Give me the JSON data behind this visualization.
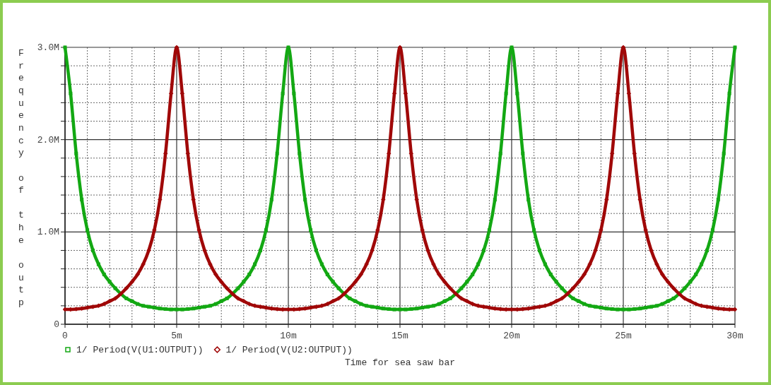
{
  "chart_data": {
    "type": "line",
    "xlabel": "Time for sea saw bar",
    "ylabel": "Frequency of the outp",
    "x": [
      0,
      0.25,
      0.5,
      0.75,
      1,
      1.25,
      1.5,
      1.75,
      2,
      2.25,
      2.5,
      2.75,
      3,
      3.25,
      3.5,
      3.75,
      4,
      4.25,
      4.5,
      4.75,
      5,
      5.25,
      5.5,
      5.75,
      6,
      6.25,
      6.5,
      6.75,
      7,
      7.25,
      7.5,
      7.75,
      8,
      8.25,
      8.5,
      8.75,
      9,
      9.25,
      9.5,
      9.75,
      10,
      10.25,
      10.5,
      10.75,
      11,
      11.25,
      11.5,
      11.75,
      12,
      12.25,
      12.5,
      12.75,
      13,
      13.25,
      13.5,
      13.75,
      14,
      14.25,
      14.5,
      14.75,
      15,
      15.25,
      15.5,
      15.75,
      16,
      16.25,
      16.5,
      16.75,
      17,
      17.25,
      17.5,
      17.75,
      18,
      18.25,
      18.5,
      18.75,
      19,
      19.25,
      19.5,
      19.75,
      20,
      20.25,
      20.5,
      20.75,
      21,
      21.25,
      21.5,
      21.75,
      22,
      22.25,
      22.5,
      22.75,
      23,
      23.25,
      23.5,
      23.75,
      24,
      24.25,
      24.5,
      24.75,
      25,
      25.25,
      25.5,
      25.75,
      26,
      26.25,
      26.5,
      26.75,
      27,
      27.25,
      27.5,
      27.75,
      28,
      28.25,
      28.5,
      28.75,
      29,
      29.25,
      29.5,
      29.75,
      30
    ],
    "series": [
      {
        "name": "1/ Period(V(U1:OUTPUT))",
        "color": "#13a813",
        "marker": "square",
        "values": [
          3.0,
          2.5,
          1.85,
          1.35,
          1.02,
          0.8,
          0.65,
          0.54,
          0.46,
          0.39,
          0.33,
          0.28,
          0.25,
          0.22,
          0.2,
          0.19,
          0.18,
          0.17,
          0.165,
          0.16,
          0.16,
          0.16,
          0.165,
          0.17,
          0.18,
          0.19,
          0.2,
          0.22,
          0.25,
          0.28,
          0.33,
          0.39,
          0.46,
          0.54,
          0.65,
          0.8,
          1.02,
          1.35,
          1.85,
          2.5,
          3.0,
          2.5,
          1.85,
          1.35,
          1.02,
          0.8,
          0.65,
          0.54,
          0.46,
          0.39,
          0.33,
          0.28,
          0.25,
          0.22,
          0.2,
          0.19,
          0.18,
          0.17,
          0.165,
          0.16,
          0.16,
          0.16,
          0.165,
          0.17,
          0.18,
          0.19,
          0.2,
          0.22,
          0.25,
          0.28,
          0.33,
          0.39,
          0.46,
          0.54,
          0.65,
          0.8,
          1.02,
          1.35,
          1.85,
          2.5,
          3.0,
          2.5,
          1.85,
          1.35,
          1.02,
          0.8,
          0.65,
          0.54,
          0.46,
          0.39,
          0.33,
          0.28,
          0.25,
          0.22,
          0.2,
          0.19,
          0.18,
          0.17,
          0.165,
          0.16,
          0.16,
          0.16,
          0.165,
          0.17,
          0.18,
          0.19,
          0.2,
          0.22,
          0.25,
          0.28,
          0.33,
          0.39,
          0.46,
          0.54,
          0.65,
          0.8,
          1.02,
          1.35,
          1.85,
          2.5,
          3.0
        ]
      },
      {
        "name": "1/ Period(V(U2:OUTPUT))",
        "color": "#a00808",
        "marker": "diamond",
        "values": [
          0.16,
          0.16,
          0.165,
          0.17,
          0.18,
          0.19,
          0.2,
          0.22,
          0.25,
          0.28,
          0.33,
          0.39,
          0.46,
          0.54,
          0.65,
          0.8,
          1.02,
          1.35,
          1.85,
          2.5,
          3.0,
          2.5,
          1.85,
          1.35,
          1.02,
          0.8,
          0.65,
          0.54,
          0.46,
          0.39,
          0.33,
          0.28,
          0.25,
          0.22,
          0.2,
          0.19,
          0.18,
          0.17,
          0.165,
          0.16,
          0.16,
          0.16,
          0.165,
          0.17,
          0.18,
          0.19,
          0.2,
          0.22,
          0.25,
          0.28,
          0.33,
          0.39,
          0.46,
          0.54,
          0.65,
          0.8,
          1.02,
          1.35,
          1.85,
          2.5,
          3.0,
          2.5,
          1.85,
          1.35,
          1.02,
          0.8,
          0.65,
          0.54,
          0.46,
          0.39,
          0.33,
          0.28,
          0.25,
          0.22,
          0.2,
          0.19,
          0.18,
          0.17,
          0.165,
          0.16,
          0.16,
          0.16,
          0.165,
          0.17,
          0.18,
          0.19,
          0.2,
          0.22,
          0.25,
          0.28,
          0.33,
          0.39,
          0.46,
          0.54,
          0.65,
          0.8,
          1.02,
          1.35,
          1.85,
          2.5,
          3.0,
          2.5,
          1.85,
          1.35,
          1.02,
          0.8,
          0.65,
          0.54,
          0.46,
          0.39,
          0.33,
          0.28,
          0.25,
          0.22,
          0.2,
          0.19,
          0.18,
          0.17,
          0.165,
          0.16,
          0.16
        ]
      }
    ],
    "xlim": [
      0,
      30
    ],
    "xticks": [
      0,
      {
        "value": 1,
        "label": null
      },
      {
        "value": 2,
        "label": null
      },
      {
        "value": 3,
        "label": null
      },
      {
        "value": 4,
        "label": null
      },
      {
        "value": 5,
        "label": "5m"
      },
      {
        "value": 6,
        "label": null
      },
      {
        "value": 7,
        "label": null
      },
      {
        "value": 8,
        "label": null
      },
      {
        "value": 9,
        "label": null
      },
      {
        "value": 10,
        "label": "10m"
      },
      {
        "value": 11,
        "label": null
      },
      {
        "value": 12,
        "label": null
      },
      {
        "value": 13,
        "label": null
      },
      {
        "value": 14,
        "label": null
      },
      {
        "value": 15,
        "label": "15m"
      },
      {
        "value": 16,
        "label": null
      },
      {
        "value": 17,
        "label": null
      },
      {
        "value": 18,
        "label": null
      },
      {
        "value": 19,
        "label": null
      },
      {
        "value": 20,
        "label": "20m"
      },
      {
        "value": 21,
        "label": null
      },
      {
        "value": 22,
        "label": null
      },
      {
        "value": 23,
        "label": null
      },
      {
        "value": 24,
        "label": null
      },
      {
        "value": 25,
        "label": "25m"
      },
      {
        "value": 26,
        "label": null
      },
      {
        "value": 27,
        "label": null
      },
      {
        "value": 28,
        "label": null
      },
      {
        "value": 29,
        "label": null
      },
      {
        "value": 30,
        "label": "30m"
      }
    ],
    "ylim": [
      0,
      3
    ],
    "yticks": [
      0,
      {
        "value": 0.2,
        "label": null
      },
      {
        "value": 0.4,
        "label": null
      },
      {
        "value": 0.6,
        "label": null
      },
      {
        "value": 0.8,
        "label": null
      },
      {
        "value": 1,
        "label": "1.0M"
      },
      {
        "value": 1.2,
        "label": null
      },
      {
        "value": 1.4,
        "label": null
      },
      {
        "value": 1.6,
        "label": null
      },
      {
        "value": 1.8,
        "label": null
      },
      {
        "value": 2,
        "label": "2.0M"
      },
      {
        "value": 2.2,
        "label": null
      },
      {
        "value": 2.4,
        "label": null
      },
      {
        "value": 2.6,
        "label": null
      },
      {
        "value": 2.8,
        "label": null
      },
      {
        "value": 3,
        "label": "3.0M"
      }
    ],
    "grid": true,
    "legend": "bottom left",
    "line_style": "solid"
  }
}
